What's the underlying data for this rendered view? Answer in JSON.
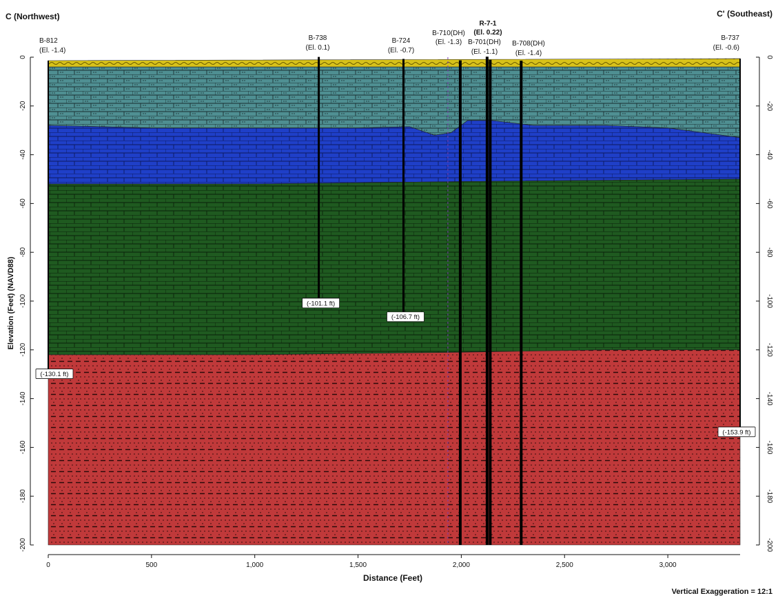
{
  "section": {
    "left_end": "C  (Northwest)",
    "right_end": "C'  (Southeast)",
    "vertical_exaggeration": "Vertical Exaggeration = 12:1"
  },
  "axes": {
    "x_label": "Distance (Feet)",
    "y_label": "Elevation (Feet) (NAVD88)",
    "x_ticks": [
      {
        "value": 0,
        "label": "0"
      },
      {
        "value": 500,
        "label": "500"
      },
      {
        "value": 1000,
        "label": "1,000"
      },
      {
        "value": 1500,
        "label": "1,500"
      },
      {
        "value": 2000,
        "label": "2,000"
      },
      {
        "value": 2500,
        "label": "2,500"
      },
      {
        "value": 3000,
        "label": "3,000"
      }
    ],
    "y_ticks": [
      {
        "value": 0,
        "label": "0"
      },
      {
        "value": -20,
        "label": "-20"
      },
      {
        "value": -40,
        "label": "-40"
      },
      {
        "value": -60,
        "label": "-60"
      },
      {
        "value": -80,
        "label": "-80"
      },
      {
        "value": -100,
        "label": "-100"
      },
      {
        "value": -120,
        "label": "-120"
      },
      {
        "value": -140,
        "label": "-140"
      },
      {
        "value": -160,
        "label": "-160"
      },
      {
        "value": -180,
        "label": "-180"
      },
      {
        "value": -200,
        "label": "-200"
      }
    ],
    "x_range": [
      0,
      3350
    ],
    "y_range": [
      -200,
      0
    ]
  },
  "layers": [
    {
      "id": "surface",
      "color": "#d8c21a",
      "pattern": "wavy",
      "top": [
        [
          0,
          -1.4
        ],
        [
          3350,
          -0.6
        ]
      ],
      "bottom": [
        [
          0,
          -4
        ],
        [
          3350,
          -4
        ]
      ]
    },
    {
      "id": "upper-limestone",
      "color": "#4f8f92",
      "pattern": "brick-dots",
      "top": [
        [
          0,
          -4
        ],
        [
          3350,
          -4
        ]
      ],
      "bottom": [
        [
          0,
          -28
        ],
        [
          500,
          -29
        ],
        [
          1500,
          -29
        ],
        [
          1750,
          -28.5
        ],
        [
          1870,
          -32
        ],
        [
          1950,
          -31
        ],
        [
          2030,
          -26
        ],
        [
          2150,
          -26
        ],
        [
          2350,
          -28
        ],
        [
          2700,
          -28
        ],
        [
          3000,
          -29
        ],
        [
          3350,
          -33
        ]
      ]
    },
    {
      "id": "blue-limestone",
      "color": "#1f3fc8",
      "pattern": "brick",
      "top": [
        [
          0,
          -28
        ],
        [
          500,
          -29
        ],
        [
          1500,
          -29
        ],
        [
          1750,
          -28.5
        ],
        [
          1870,
          -32
        ],
        [
          1950,
          -31
        ],
        [
          2030,
          -26
        ],
        [
          2150,
          -26
        ],
        [
          2350,
          -28
        ],
        [
          2700,
          -28
        ],
        [
          3000,
          -29
        ],
        [
          3350,
          -33
        ]
      ],
      "bottom": [
        [
          0,
          -52
        ],
        [
          1000,
          -52
        ],
        [
          2000,
          -51
        ],
        [
          3350,
          -50
        ]
      ]
    },
    {
      "id": "green-limestone",
      "color": "#1f5a20",
      "pattern": "brick",
      "top": [
        [
          0,
          -52
        ],
        [
          1000,
          -52
        ],
        [
          2000,
          -51
        ],
        [
          3350,
          -50
        ]
      ],
      "bottom": [
        [
          0,
          -122
        ],
        [
          1000,
          -122
        ],
        [
          2000,
          -121
        ],
        [
          2700,
          -120
        ],
        [
          3350,
          -120
        ]
      ]
    },
    {
      "id": "sand",
      "color": "#c0393a",
      "pattern": "dots-dashes",
      "top": [
        [
          0,
          -122
        ],
        [
          1000,
          -122
        ],
        [
          2000,
          -121
        ],
        [
          2700,
          -120
        ],
        [
          3350,
          -120
        ]
      ],
      "bottom": [
        [
          0,
          -200
        ],
        [
          3350,
          -200
        ]
      ]
    }
  ],
  "borings": [
    {
      "name": "B-812",
      "elev": "(El. -1.4)",
      "x": 0,
      "top": -1.4,
      "bottom": -130.1,
      "bottom_label": "(-130.1 ft)",
      "width": 2,
      "label_align": "left"
    },
    {
      "name": "B-738",
      "elev": "(El. 0.1)",
      "x": 1310,
      "top": 0.1,
      "bottom": -101.1,
      "bottom_label": "(-101.1 ft)",
      "width": 3
    },
    {
      "name": "B-724",
      "elev": "(El. -0.7)",
      "x": 1720,
      "top": -0.7,
      "bottom": -106.7,
      "bottom_label": "(-106.7 ft)",
      "width": 3
    },
    {
      "name": "B-710(DH)",
      "elev": "(El. -1.3)",
      "x": 1995,
      "top": -1.3,
      "bottom": -200,
      "width": 4
    },
    {
      "name": "B-701(DH)",
      "elev": "(El. -1.1)",
      "x": 2140,
      "top": -1.1,
      "bottom": -200,
      "width": 4
    },
    {
      "name": "R-7-1",
      "elev": "(El. 0.22)",
      "x": 2125,
      "top": 0.22,
      "bottom": -200,
      "width": 4,
      "bold": true
    },
    {
      "name": "B-708(DH)",
      "elev": "(El. -1.4)",
      "x": 2290,
      "top": -1.4,
      "bottom": -200,
      "width": 4
    },
    {
      "name": "B-737",
      "elev": "(El. -0.6)",
      "x": 3350,
      "top": -0.6,
      "bottom": -153.9,
      "bottom_label": "(-153.9 ft)",
      "width": 2,
      "label_align": "right"
    }
  ],
  "dashed_line": {
    "x": 1935,
    "color": "#7a3fb0"
  }
}
